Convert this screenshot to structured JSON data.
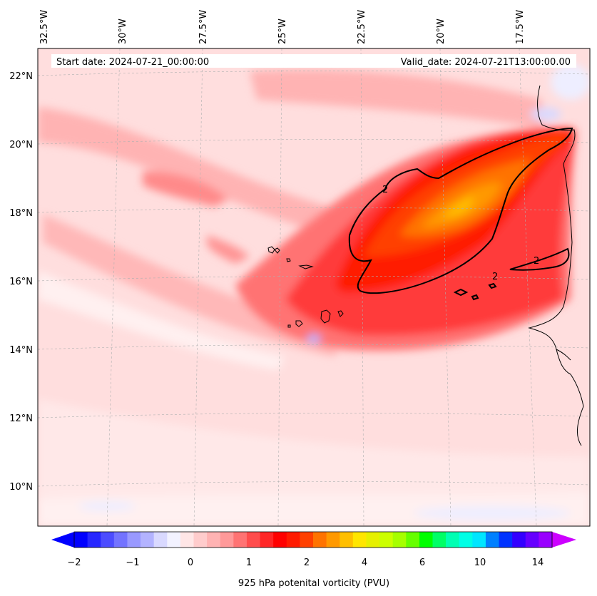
{
  "header": {
    "start_date": "Start date: 2024-07-21_00:00:00",
    "valid_date": "Valid_date: 2024-07-21T13:00:00.00"
  },
  "lon_ticks": [
    "32.5°W",
    "30°W",
    "27.5°W",
    "25°W",
    "22.5°W",
    "20°W",
    "17.5°W"
  ],
  "lat_ticks": [
    "22°N",
    "20°N",
    "18°N",
    "16°N",
    "14°N",
    "12°N",
    "10°N"
  ],
  "contour_labels": [
    "2",
    "2",
    "2"
  ],
  "colorbar": {
    "label": "925 hPa potenital vorticity (PVU)",
    "ticks": [
      "−2",
      "−1",
      "0",
      "1",
      "2",
      "4",
      "6",
      "10",
      "14"
    ],
    "colors": [
      "#0000ff",
      "#2626ff",
      "#4c4cff",
      "#7373ff",
      "#9999ff",
      "#b3b3ff",
      "#d9d9ff",
      "#f2f2ff",
      "#ffe6e6",
      "#ffcccc",
      "#ffb3b3",
      "#ff9999",
      "#ff7373",
      "#ff4c4c",
      "#ff2626",
      "#ff0000",
      "#ff1a00",
      "#ff4000",
      "#ff7300",
      "#ff9900",
      "#ffbf00",
      "#ffe600",
      "#e6f000",
      "#ccff00",
      "#a6ff00",
      "#66ff00",
      "#00ff00",
      "#00ff66",
      "#00ffb3",
      "#00ffe6",
      "#00e6ff",
      "#0080ff",
      "#0033ff",
      "#3300ff",
      "#6600ff",
      "#9900ff"
    ],
    "under_color": "#0000ff",
    "over_color": "#cc00ff"
  },
  "map": {
    "background_color": "#ffdede",
    "coastline_color": "#000000",
    "pv_contour_level": 2
  }
}
